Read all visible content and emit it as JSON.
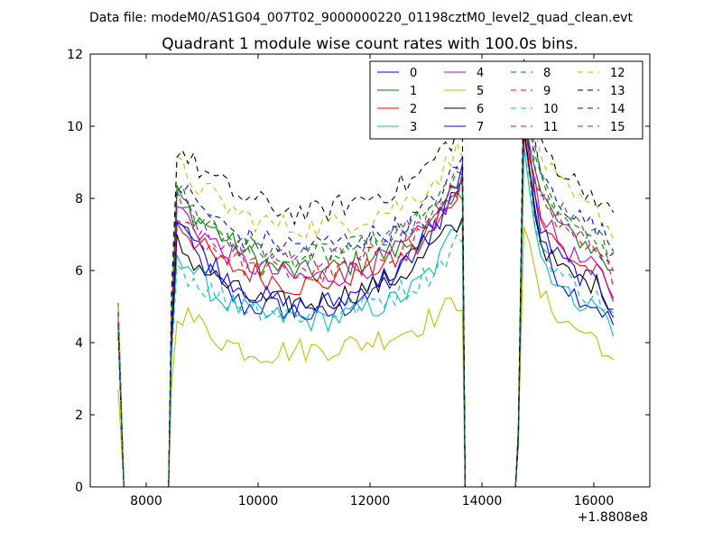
{
  "page_title": "Data file: modeM0/AS1G04_007T02_9000000220_01198cztM0_level2_quad_clean.evt",
  "chart_data": {
    "type": "line",
    "title": "Quadrant 1 module wise count rates with 100.0s bins.",
    "xlabel": "",
    "ylabel": "",
    "x_offset_label": "+1.8808e8",
    "xlim": [
      7000,
      17000
    ],
    "ylim": [
      0,
      12
    ],
    "x_ticks": [
      8000,
      10000,
      12000,
      14000,
      16000
    ],
    "x_tick_labels": [
      "8000",
      "10000",
      "12000",
      "14000",
      "16000"
    ],
    "y_ticks": [
      0,
      2,
      4,
      6,
      8,
      10,
      12
    ],
    "y_tick_labels": [
      "0",
      "2",
      "4",
      "6",
      "8",
      "10",
      "12"
    ],
    "grid": false,
    "legend_position": "top-right",
    "legend_columns": 4,
    "segment1": {
      "x": [
        7500,
        7600
      ],
      "baseline": [
        4.8,
        5.1,
        4.6,
        4.4,
        4.9,
        2.7,
        4.7,
        4.5,
        4.8,
        4.6,
        4.4,
        4.7,
        5.0,
        4.2,
        4.5,
        4.3
      ]
    },
    "segment2": {
      "x_start": 8400,
      "x_step": 100,
      "x_end": 13600,
      "series_levels": [
        [
          7.8,
          6.4,
          5.6,
          5.0,
          5.0,
          4.9,
          4.7,
          4.9,
          5.4,
          5.7,
          6.4,
          7.6,
          8.4
        ],
        [
          8.3,
          7.5,
          7.0,
          6.5,
          6.1,
          6.0,
          5.9,
          6.1,
          6.3,
          6.5,
          6.8,
          7.4,
          8.1
        ],
        [
          7.6,
          6.8,
          6.2,
          6.0,
          5.8,
          5.6,
          5.6,
          5.8,
          6.0,
          6.2,
          6.5,
          7.2,
          8.5
        ],
        [
          6.8,
          5.9,
          5.2,
          4.9,
          4.7,
          4.7,
          4.6,
          4.7,
          4.9,
          5.1,
          5.5,
          6.2,
          7.6
        ],
        [
          8.0,
          7.2,
          6.6,
          6.2,
          6.0,
          5.8,
          5.8,
          5.9,
          6.1,
          6.4,
          6.8,
          7.5,
          8.3
        ],
        [
          5.0,
          4.6,
          4.1,
          3.8,
          3.7,
          3.8,
          3.8,
          3.9,
          4.0,
          4.2,
          4.4,
          4.8,
          5.2
        ],
        [
          6.9,
          6.2,
          5.7,
          5.3,
          5.1,
          5.1,
          5.1,
          5.3,
          5.5,
          5.7,
          6.1,
          6.8,
          7.3
        ],
        [
          7.9,
          6.7,
          6.0,
          5.5,
          5.2,
          5.0,
          5.0,
          5.2,
          5.5,
          5.9,
          6.4,
          7.3,
          8.9
        ],
        [
          8.5,
          7.6,
          7.1,
          6.7,
          6.5,
          6.4,
          6.4,
          6.5,
          6.7,
          6.9,
          7.2,
          7.8,
          8.6
        ],
        [
          7.9,
          7.0,
          6.5,
          6.2,
          6.0,
          5.9,
          5.9,
          6.0,
          6.3,
          6.5,
          6.9,
          7.6,
          8.4
        ],
        [
          6.3,
          5.7,
          5.3,
          5.0,
          4.9,
          4.8,
          4.8,
          4.9,
          5.1,
          5.3,
          5.6,
          6.1,
          7.0
        ],
        [
          8.2,
          7.4,
          6.9,
          6.6,
          6.4,
          6.3,
          6.3,
          6.4,
          6.6,
          6.9,
          7.2,
          7.9,
          8.8
        ],
        [
          9.1,
          8.4,
          7.9,
          7.5,
          7.3,
          7.2,
          7.2,
          7.3,
          7.5,
          7.7,
          8.0,
          8.6,
          9.5
        ],
        [
          9.6,
          8.9,
          8.4,
          8.0,
          7.8,
          7.6,
          7.6,
          7.8,
          8.0,
          8.2,
          8.5,
          9.2,
          10.0
        ],
        [
          8.6,
          7.9,
          7.3,
          6.9,
          6.8,
          6.7,
          6.7,
          6.8,
          6.9,
          7.1,
          7.4,
          8.1,
          9.0
        ],
        [
          8.4,
          7.6,
          7.0,
          6.7,
          6.5,
          6.4,
          6.4,
          6.5,
          6.7,
          7.0,
          7.3,
          7.9,
          8.7
        ]
      ]
    },
    "segment3": {
      "x_start": 14700,
      "x_step": 100,
      "x_end": 16300,
      "series_levels": [
        [
          10.0,
          7.0,
          6.0,
          5.5,
          5.2,
          5.0,
          4.5
        ],
        [
          10.5,
          8.2,
          7.5,
          7.0,
          6.8,
          6.5,
          5.9
        ],
        [
          9.8,
          7.5,
          6.8,
          6.4,
          6.1,
          5.9,
          5.2
        ],
        [
          9.5,
          6.5,
          5.8,
          5.3,
          5.1,
          5.0,
          4.4
        ],
        [
          10.3,
          7.8,
          7.0,
          6.5,
          6.2,
          6.0,
          5.4
        ],
        [
          7.2,
          5.4,
          4.9,
          4.5,
          4.3,
          4.1,
          3.3
        ],
        [
          9.9,
          6.9,
          6.2,
          5.9,
          5.7,
          5.6,
          5.0
        ],
        [
          10.2,
          7.3,
          6.5,
          6.1,
          5.8,
          5.6,
          4.9
        ],
        [
          11.0,
          8.6,
          7.9,
          7.4,
          7.1,
          6.9,
          6.3
        ],
        [
          10.4,
          8.0,
          7.3,
          6.9,
          6.6,
          6.4,
          5.8
        ],
        [
          9.3,
          6.8,
          6.1,
          5.7,
          5.4,
          5.2,
          4.7
        ],
        [
          10.8,
          8.3,
          7.6,
          7.2,
          6.9,
          6.7,
          6.1
        ],
        [
          11.6,
          9.3,
          8.6,
          8.1,
          7.8,
          7.6,
          7.0
        ],
        [
          11.9,
          9.7,
          9.0,
          8.6,
          8.3,
          8.0,
          7.4
        ],
        [
          11.1,
          8.8,
          8.1,
          7.7,
          7.4,
          7.2,
          6.6
        ],
        [
          10.9,
          8.5,
          7.8,
          7.4,
          7.1,
          6.9,
          6.3
        ]
      ]
    },
    "series": [
      {
        "name": "0",
        "color": "#0000ff",
        "dash": "solid"
      },
      {
        "name": "1",
        "color": "#008000",
        "dash": "solid"
      },
      {
        "name": "2",
        "color": "#ff0000",
        "dash": "solid"
      },
      {
        "name": "3",
        "color": "#00bfbf",
        "dash": "solid"
      },
      {
        "name": "4",
        "color": "#bf00bf",
        "dash": "solid"
      },
      {
        "name": "5",
        "color": "#bfbf00",
        "dash": "solid"
      },
      {
        "name": "6",
        "color": "#000000",
        "dash": "solid"
      },
      {
        "name": "7",
        "color": "#0000ff",
        "dash": "solid"
      },
      {
        "name": "8",
        "color": "#008000",
        "dash": "dashed"
      },
      {
        "name": "9",
        "color": "#ff0000",
        "dash": "dashed"
      },
      {
        "name": "10",
        "color": "#00bfbf",
        "dash": "dashed"
      },
      {
        "name": "11",
        "color": "#bf00bf",
        "dash": "dashed"
      },
      {
        "name": "12",
        "color": "#bfbf00",
        "dash": "dashed"
      },
      {
        "name": "13",
        "color": "#000000",
        "dash": "dashed"
      },
      {
        "name": "14",
        "color": "#0000ff",
        "dash": "dashed"
      },
      {
        "name": "15",
        "color": "#008000",
        "dash": "dashed"
      }
    ]
  }
}
